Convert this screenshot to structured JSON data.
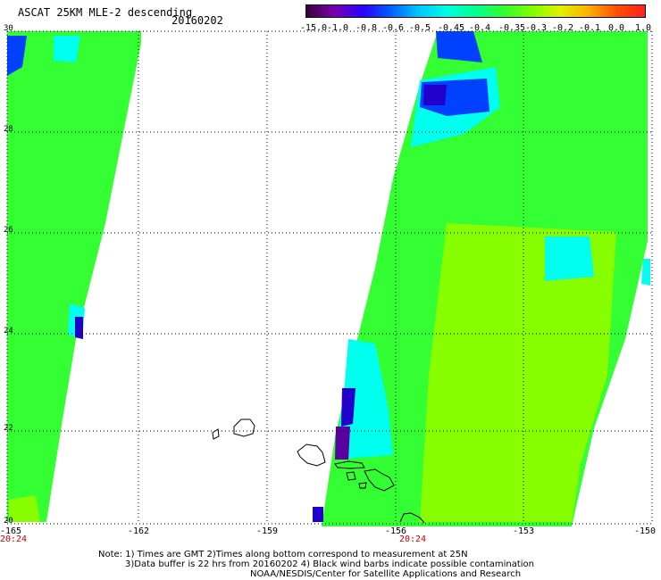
{
  "header": {
    "title": "ASCAT 25KM MLE-2 descending",
    "date": "20160202"
  },
  "colorbar": {
    "labels": [
      "-15.0",
      "-1.0",
      "-0.8",
      "-0.6",
      "-0.5",
      "-0.45",
      "-0.4",
      "-0.35",
      "-0.3",
      "-0.2",
      "-0.1",
      "0.0",
      "1.0"
    ],
    "colors": [
      "#3a0038",
      "#7a00b0",
      "#2a00ff",
      "#0060ff",
      "#00c8ff",
      "#00ffe0",
      "#00ff90",
      "#30ff30",
      "#80ff00",
      "#e0f000",
      "#ffb000",
      "#ff5000",
      "#ff2020"
    ]
  },
  "axes": {
    "lat_labels": [
      "30",
      "28",
      "26",
      "24",
      "22",
      "20"
    ],
    "lon_labels": [
      "-165",
      "-162",
      "-159",
      "-156",
      "-153",
      "-150"
    ],
    "pass_times": [
      "20:24",
      "20:24"
    ]
  },
  "notes": {
    "line1": "Note: 1) Times are GMT 2)Times along bottom correspond to measurement at 25N",
    "line2": "3)Data buffer is 22 hrs from 20160202 4) Black wind barbs indicate possible contamination",
    "line3": "NOAA/NESDIS/Center for Satellite Applications and Research"
  },
  "map_colors": {
    "green": "#33ff33",
    "lime": "#88ff00",
    "cyan": "#00ffee",
    "blue": "#0040ff",
    "navy": "#2200cc",
    "purple": "#5a00a0"
  }
}
